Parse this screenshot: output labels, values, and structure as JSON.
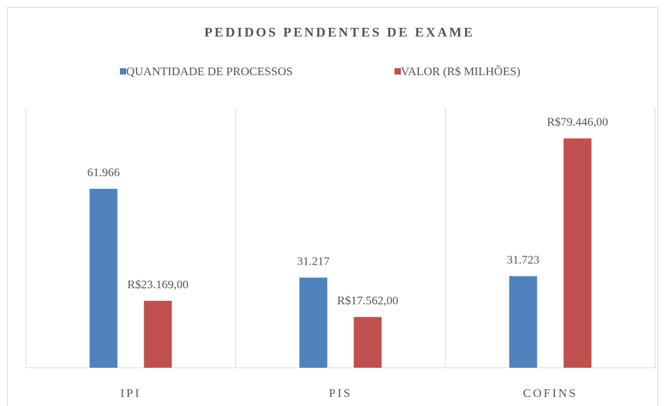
{
  "chart_data": {
    "type": "bar",
    "title": "PEDIDOS PENDENTES DE EXAME",
    "categories": [
      "IPI",
      "PIS",
      "COFINS"
    ],
    "series": [
      {
        "name": "QUANTIDADE DE PROCESSOS",
        "color": "#4f81bd",
        "values": [
          61966,
          31217,
          31723
        ],
        "value_labels": [
          "61.966",
          "31.217",
          "31.723"
        ]
      },
      {
        "name": "VALOR (R$ MILHÕES)",
        "color": "#c0504d",
        "values": [
          23169,
          17562,
          79446
        ],
        "value_labels": [
          "R$23.169,00",
          "R$17.562,00",
          "R$79.446,00"
        ]
      }
    ],
    "ylim": [
      0,
      90000
    ],
    "legend": "top"
  }
}
